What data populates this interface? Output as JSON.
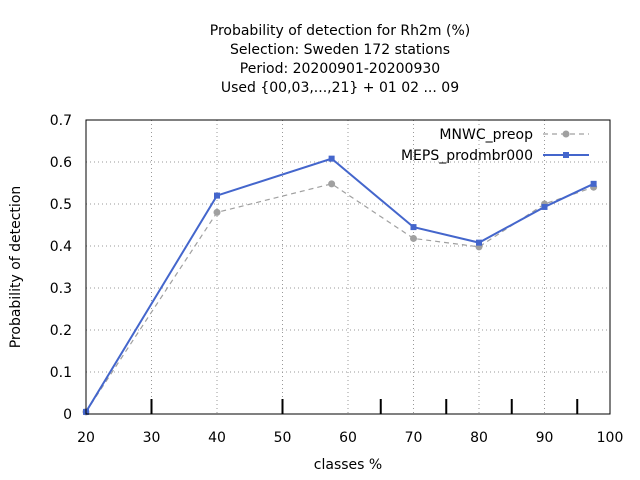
{
  "chart_data": {
    "type": "line",
    "title_lines": [
      "Probability of detection  for Rh2m (%)",
      "Selection: Sweden    172 stations",
      "Period: 20200901-20200930",
      "Used {00,03,...,21} + 01 02 ... 09"
    ],
    "xlabel": "classes %",
    "ylabel": "Probability of detection",
    "xlim": [
      20,
      100
    ],
    "ylim": [
      0,
      0.7
    ],
    "xticks": [
      "20",
      "30",
      "40",
      "50",
      "60",
      "70",
      "80",
      "90",
      "100"
    ],
    "yticks": [
      "0",
      "0.1",
      "0.2",
      "0.3",
      "0.4",
      "0.5",
      "0.6",
      "0.7"
    ],
    "class_marks": [
      30,
      50,
      65,
      75,
      85,
      95
    ],
    "grid": true,
    "legend_position": "top-right",
    "series": [
      {
        "name": "MNWC_preop",
        "color": "#a0a0a0",
        "style": "dashed",
        "x": [
          20,
          40,
          57.5,
          70,
          80,
          90,
          97.5
        ],
        "y": [
          0.005,
          0.48,
          0.548,
          0.418,
          0.398,
          0.5,
          0.54
        ]
      },
      {
        "name": "MEPS_prodmbr000",
        "color": "#4466cc",
        "style": "solid",
        "x": [
          20,
          40,
          57.5,
          70,
          80,
          90,
          97.5
        ],
        "y": [
          0.005,
          0.52,
          0.608,
          0.445,
          0.408,
          0.493,
          0.548
        ]
      }
    ]
  }
}
